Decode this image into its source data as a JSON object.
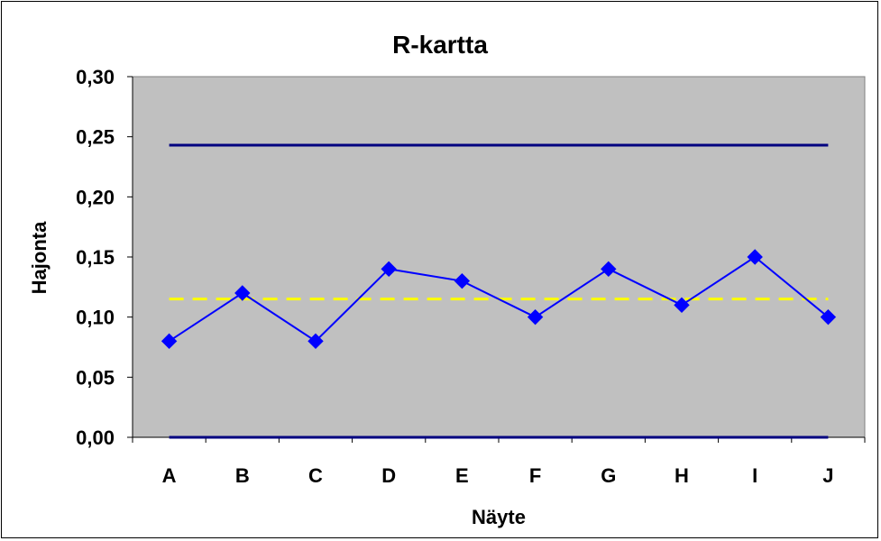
{
  "chart_data": {
    "type": "line",
    "title": "R-kartta",
    "xlabel": "Näyte",
    "ylabel": "Hajonta",
    "ylim": [
      0,
      0.3
    ],
    "ytick_values": [
      0,
      0.05,
      0.1,
      0.15,
      0.2,
      0.25,
      0.3
    ],
    "ytick_labels": [
      "0,00",
      "0,05",
      "0,10",
      "0,15",
      "0,20",
      "0,25",
      "0,30"
    ],
    "categories": [
      "A",
      "B",
      "C",
      "D",
      "E",
      "F",
      "G",
      "H",
      "I",
      "J"
    ],
    "series": [
      {
        "values": [
          0.08,
          0.12,
          0.08,
          0.14,
          0.13,
          0.1,
          0.14,
          0.11,
          0.15,
          0.1
        ],
        "color": "#0000FF",
        "marker": "diamond"
      }
    ],
    "reference_lines": [
      {
        "value": 0.243,
        "color": "#000080",
        "style": "solid"
      },
      {
        "value": 0.115,
        "color": "#FFFF00",
        "style": "dashed"
      },
      {
        "value": 0,
        "color": "#000080",
        "style": "solid"
      }
    ],
    "plot_background": "#C0C0C0",
    "grid": false,
    "legend": "none"
  }
}
